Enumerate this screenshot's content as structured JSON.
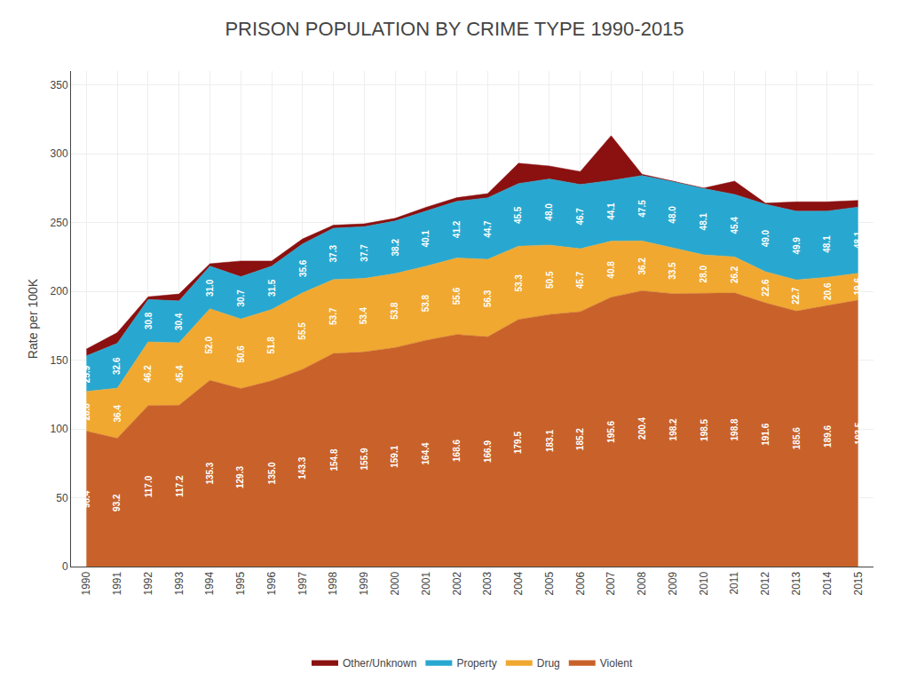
{
  "chart_data": {
    "type": "area",
    "title": "PRISON POPULATION BY CRIME TYPE 1990-2015",
    "ylabel": "Rate per 100K",
    "x": [
      1990,
      1991,
      1992,
      1993,
      1994,
      1995,
      1996,
      1997,
      1998,
      1999,
      2000,
      2001,
      2002,
      2003,
      2004,
      2005,
      2006,
      2007,
      2008,
      2009,
      2010,
      2011,
      2012,
      2013,
      2014,
      2015
    ],
    "series": [
      {
        "name": "Violent",
        "color": "#C8622A",
        "data_labels": true,
        "values": [
          98.4,
          93.2,
          117,
          117.2,
          135.3,
          129.3,
          135,
          143.3,
          154.8,
          155.9,
          159.1,
          164.4,
          168.6,
          166.9,
          179.5,
          183.1,
          185.2,
          195.6,
          200.4,
          198.2,
          198.5,
          198.8,
          191.6,
          185.6,
          189.6,
          193.5
        ],
        "value_labels": [
          "98.4",
          "93.2",
          "117.0",
          "117.2",
          "135.3",
          "129.3",
          "135.0",
          "143.3",
          "154.8",
          "155.9",
          "159.1",
          "164.4",
          "168.6",
          "166.9",
          "179.5",
          "183.1",
          "185.2",
          "195.6",
          "200.4",
          "198.2",
          "198.5",
          "198.8",
          "191.6",
          "185.6",
          "189.6",
          "193.5"
        ]
      },
      {
        "name": "Drug",
        "color": "#F0A830",
        "data_labels": true,
        "values": [
          28.8,
          36.4,
          46.2,
          45.4,
          52,
          50.6,
          51.8,
          55.5,
          53.7,
          53.4,
          53.8,
          53.8,
          55.6,
          56.3,
          53.3,
          50.5,
          45.7,
          40.8,
          36.2,
          33.5,
          28,
          26.2,
          22.6,
          22.7,
          20.6,
          19.6
        ],
        "value_labels": [
          "28.8",
          "36.4",
          "46.2",
          "45.4",
          "52.0",
          "50.6",
          "51.8",
          "55.5",
          "53.7",
          "53.4",
          "53.8",
          "53.8",
          "55.6",
          "56.3",
          "53.3",
          "50.5",
          "45.7",
          "40.8",
          "36.2",
          "33.5",
          "28.0",
          "26.2",
          "22.6",
          "22.7",
          "20.6",
          "19.6"
        ]
      },
      {
        "name": "Property",
        "color": "#28A8D0",
        "data_labels": true,
        "values": [
          25.9,
          32.6,
          30.8,
          30.4,
          31,
          30.7,
          31.5,
          35.6,
          37.3,
          37.7,
          38.2,
          40.1,
          41.2,
          44.7,
          45.5,
          48,
          46.7,
          44.1,
          47.5,
          48,
          48.1,
          45.4,
          49,
          49.9,
          48.1,
          48.1
        ],
        "value_labels": [
          "25.9",
          "32.6",
          "30.8",
          "30.4",
          "31.0",
          "30.7",
          "31.5",
          "35.6",
          "37.3",
          "37.7",
          "38.2",
          "40.1",
          "41.2",
          "44.7",
          "45.5",
          "48.0",
          "46.7",
          "44.1",
          "47.5",
          "48.0",
          "48.1",
          "45.4",
          "49.0",
          "49.9",
          "48.1",
          "48.1"
        ]
      },
      {
        "name": "Other/Unknown",
        "color": "#8B1010",
        "values": [
          4.9,
          7.8,
          2,
          5,
          1.7,
          11.4,
          3.7,
          3.6,
          2.2,
          2,
          1.9,
          2.7,
          2.6,
          3.1,
          14.7,
          9.4,
          9.4,
          32.5,
          0.9,
          0.3,
          0.4,
          9.6,
          0.8,
          6.8,
          6.7,
          4.8
        ]
      }
    ],
    "stacked": true,
    "xlim": [
      1989.5,
      2015.5
    ],
    "xticks": [
      1990,
      1991,
      1992,
      1993,
      1994,
      1995,
      1996,
      1997,
      1998,
      1999,
      2000,
      2001,
      2002,
      2003,
      2004,
      2005,
      2006,
      2007,
      2008,
      2009,
      2010,
      2011,
      2012,
      2013,
      2014,
      2015
    ],
    "ylim": [
      0,
      360
    ],
    "yticks": [
      0,
      50,
      100,
      150,
      200,
      250,
      300,
      350
    ],
    "grid": true,
    "legend": "bottom"
  }
}
